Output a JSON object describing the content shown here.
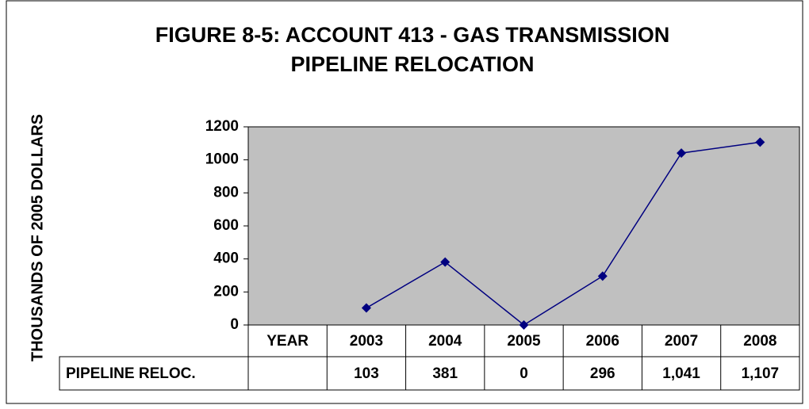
{
  "chart_data": {
    "type": "line",
    "title": [
      "FIGURE 8-5: ACCOUNT 413 - GAS TRANSMISSION",
      "PIPELINE RELOCATION"
    ],
    "y_label": "THOUSANDS OF 2005 DOLLARS",
    "categories": [
      "YEAR",
      "2003",
      "2004",
      "2005",
      "2006",
      "2007",
      "2008"
    ],
    "series": [
      {
        "name": "PIPELINE RELOC.",
        "color": "#000080",
        "values": [
          null,
          103,
          381,
          0,
          296,
          1041,
          1107
        ],
        "value_labels": [
          null,
          "103",
          "381",
          "0",
          "296",
          "1,041",
          "1,107"
        ]
      }
    ],
    "ylim": [
      0,
      1200
    ],
    "yticks": [
      0,
      200,
      400,
      600,
      800,
      1000,
      1200
    ],
    "plot_background": "#c0c0c0"
  }
}
